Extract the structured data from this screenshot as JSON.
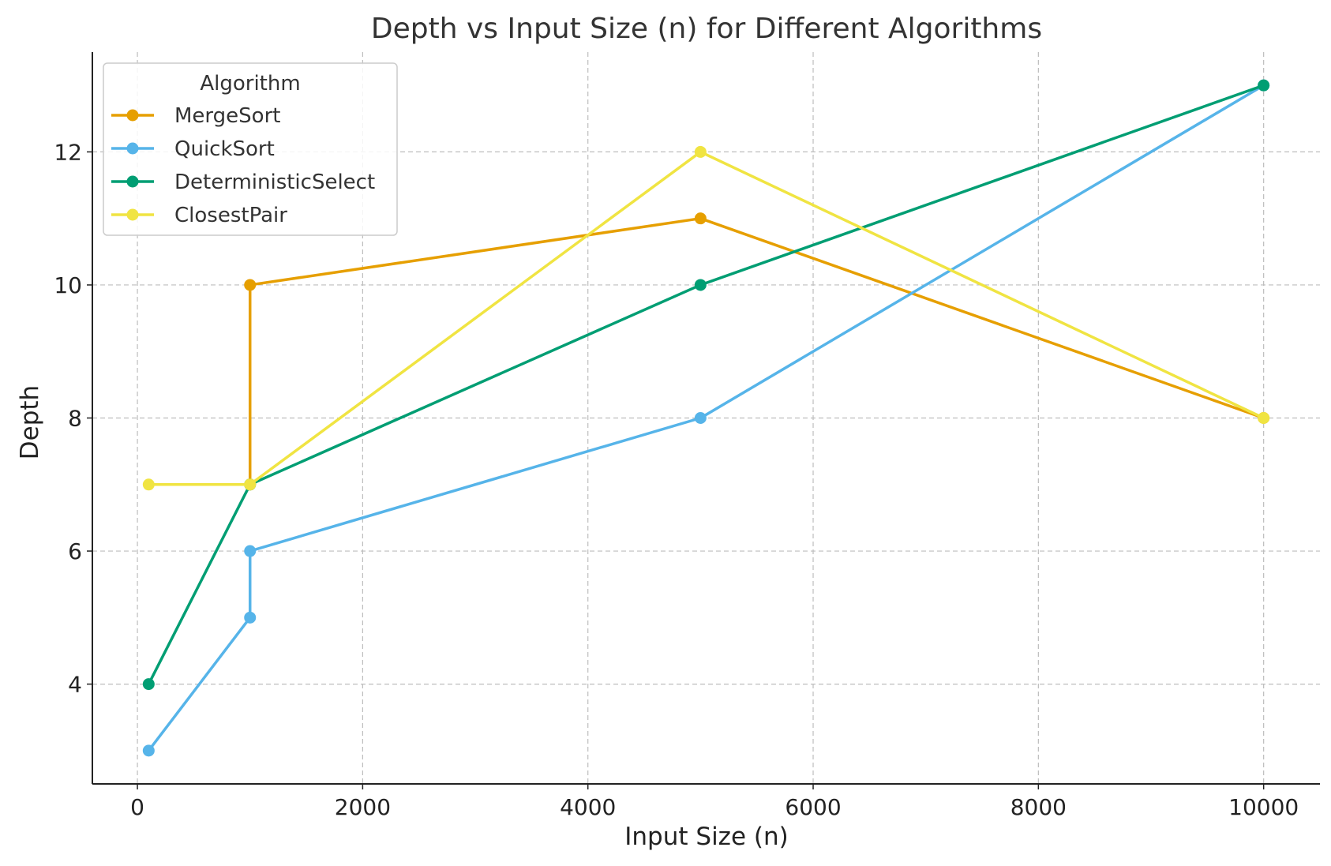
{
  "chart_data": {
    "type": "line",
    "title": "Depth vs Input Size (n) for Different Algorithms",
    "xlabel": "Input Size (n)",
    "ylabel": "Depth",
    "xlim": [
      -400,
      10500
    ],
    "ylim": [
      2.5,
      13.5
    ],
    "xticks": [
      0,
      2000,
      4000,
      6000,
      8000,
      10000
    ],
    "yticks": [
      4,
      6,
      8,
      10,
      12
    ],
    "grid": true,
    "grid_style": "dashed",
    "legend": {
      "title": "Algorithm",
      "placement": "top-left"
    },
    "series": [
      {
        "name": "MergeSort",
        "color": "#E69F00",
        "x": [
          1000,
          1000,
          5000,
          10000
        ],
        "y": [
          7,
          10,
          11,
          8
        ]
      },
      {
        "name": "QuickSort",
        "color": "#56B4E9",
        "x": [
          100,
          1000,
          1000,
          5000,
          10000
        ],
        "y": [
          3,
          5,
          6,
          8,
          13
        ]
      },
      {
        "name": "DeterministicSelect",
        "color": "#009E73",
        "x": [
          100,
          1000,
          5000,
          10000
        ],
        "y": [
          4,
          7,
          10,
          13
        ]
      },
      {
        "name": "ClosestPair",
        "color": "#F0E442",
        "x": [
          100,
          1000,
          5000,
          10000
        ],
        "y": [
          7,
          7,
          12,
          8
        ]
      }
    ]
  }
}
